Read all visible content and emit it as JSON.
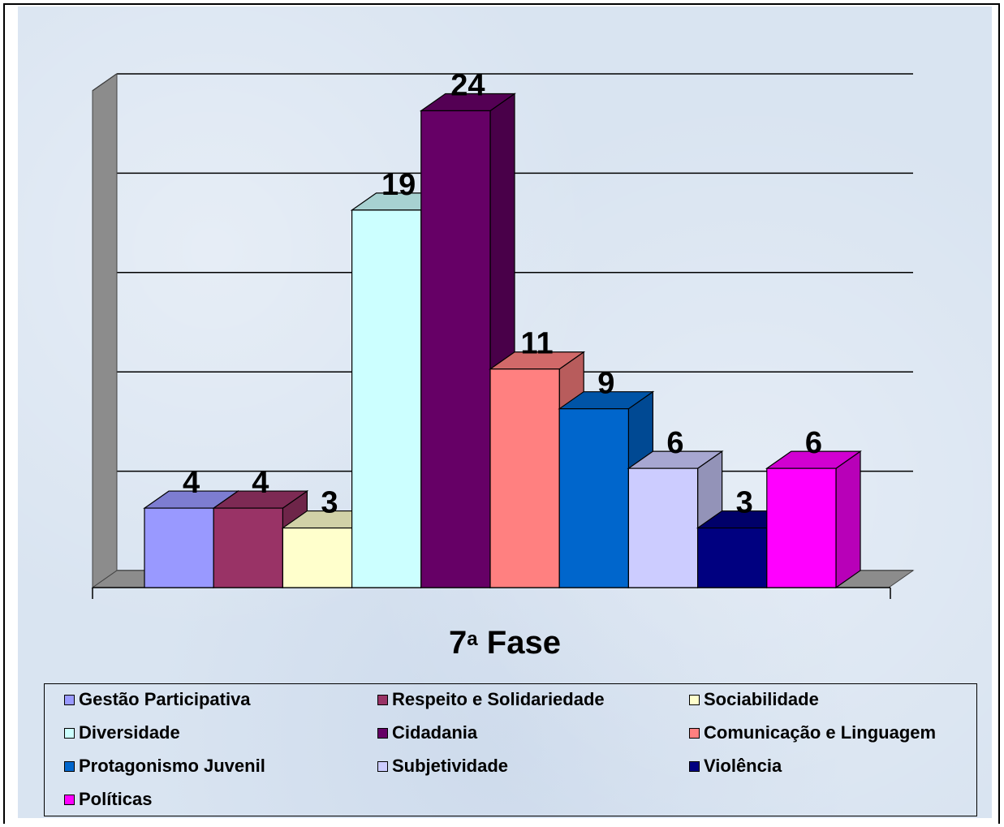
{
  "chart_data": {
    "type": "bar",
    "title": "7ª Fase",
    "title_base": "7",
    "title_sup": "a",
    "title_rest": " Fase",
    "categories": [
      "Gestão Participativa",
      "Respeito e Solidariedade",
      "Sociabilidade",
      "Diversidade",
      "Cidadania",
      "Comunicação e Linguagem",
      "Protagonismo Juvenil",
      "Subjetividade",
      "Violência",
      "Políticas"
    ],
    "values": [
      4,
      4,
      3,
      19,
      24,
      11,
      9,
      6,
      3,
      6
    ],
    "colors": [
      "#9999ff",
      "#993366",
      "#ffffcc",
      "#ccffff",
      "#660066",
      "#ff8080",
      "#0066cc",
      "#ccccff",
      "#000080",
      "#ff00ff"
    ],
    "ylim": [
      0,
      25
    ],
    "gridlines": true,
    "grid_step": 5,
    "three_d": true,
    "legend_position": "bottom",
    "xlabel": "",
    "ylabel": ""
  }
}
